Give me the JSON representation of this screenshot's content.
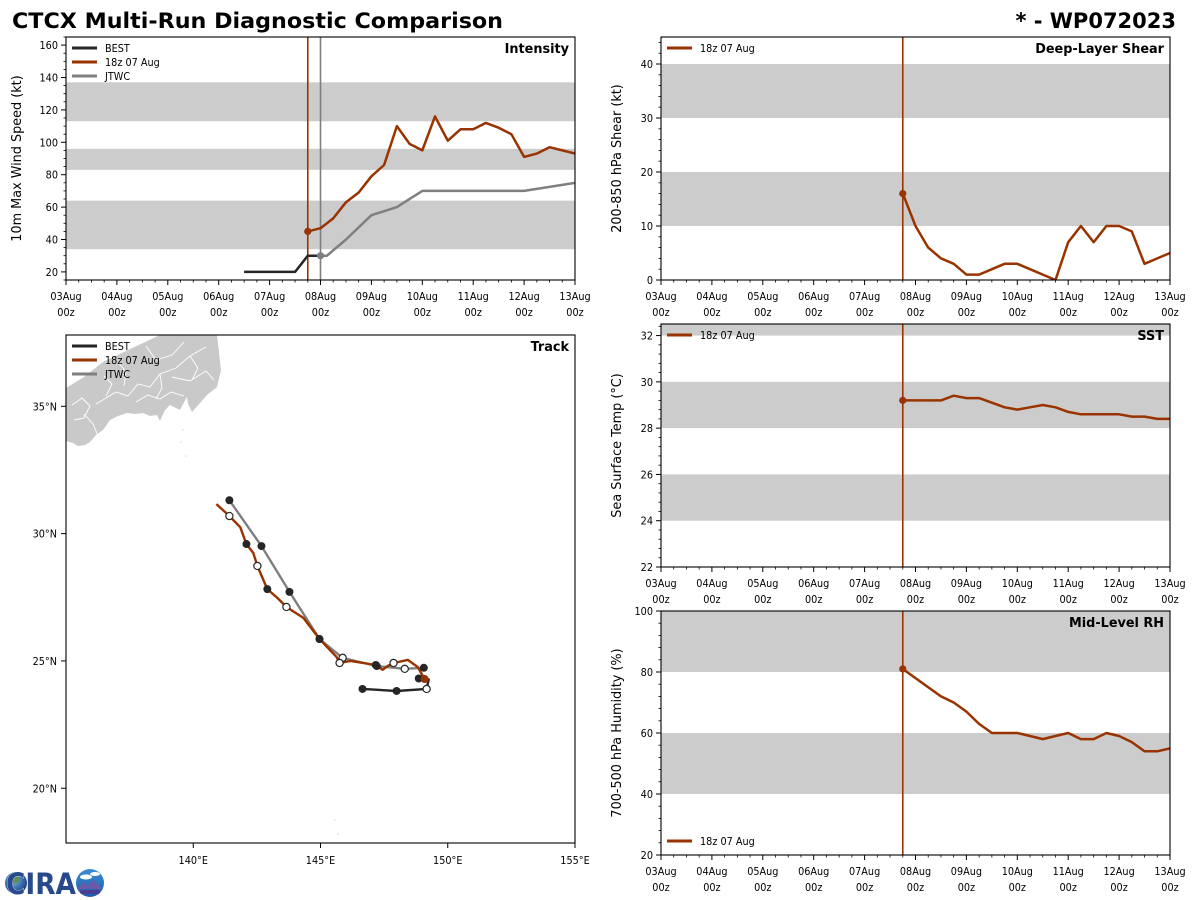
{
  "header": {
    "title": "CTCX Multi-Run Diagnostic Comparison",
    "storm_id": "* - WP072023"
  },
  "branding": {
    "logo_text": "CIRA"
  },
  "colors": {
    "best": "#262626",
    "run": "#993300",
    "jtwc": "#7f7f7f",
    "band": "#cccccc",
    "land": "#c9c9c9"
  },
  "chart_data": [
    {
      "id": "intensity",
      "type": "line",
      "title": "Intensity",
      "xlabel": "",
      "ylabel": "10m Max Wind Speed (kt)",
      "x_unit": "hours since 03Aug 00z",
      "xlim": [
        0,
        240
      ],
      "xticks": [
        0,
        24,
        48,
        72,
        96,
        120,
        144,
        168,
        192,
        216,
        240
      ],
      "xminor_step": 6,
      "xtick_labels": [
        [
          "03Aug",
          "00z"
        ],
        [
          "04Aug",
          "00z"
        ],
        [
          "05Aug",
          "00z"
        ],
        [
          "06Aug",
          "00z"
        ],
        [
          "07Aug",
          "00z"
        ],
        [
          "08Aug",
          "00z"
        ],
        [
          "09Aug",
          "00z"
        ],
        [
          "10Aug",
          "00z"
        ],
        [
          "11Aug",
          "00z"
        ],
        [
          "12Aug",
          "00z"
        ],
        [
          "13Aug",
          "00z"
        ]
      ],
      "ylim": [
        15,
        165
      ],
      "yticks": [
        20,
        40,
        60,
        80,
        100,
        120,
        140,
        160
      ],
      "yminor_step": 5,
      "bands": [
        [
          34,
          64
        ],
        [
          83,
          96
        ],
        [
          113,
          137
        ]
      ],
      "init_lines": [
        {
          "name": "18z 07 Aug",
          "x": 114,
          "color": "#993300"
        },
        {
          "name": "JTWC",
          "x": 120,
          "color": "#7f7f7f"
        }
      ],
      "legend": "top-left",
      "grid": false,
      "series": [
        {
          "name": "BEST",
          "color": "#262626",
          "start_marker": false,
          "points": [
            [
              84,
              20
            ],
            [
              108,
              20
            ],
            [
              114,
              30
            ],
            [
              120,
              30
            ]
          ]
        },
        {
          "name": "JTWC",
          "color": "#7f7f7f",
          "start_marker": true,
          "points": [
            [
              120,
              30
            ],
            [
              123,
              30
            ],
            [
              132,
              40
            ],
            [
              144,
              55
            ],
            [
              156,
              60
            ],
            [
              168,
              70
            ],
            [
              216,
              70
            ],
            [
              240,
              75
            ]
          ]
        },
        {
          "name": "18z 07 Aug",
          "color": "#993300",
          "start_marker": true,
          "points": [
            [
              114,
              45
            ],
            [
              120,
              47
            ],
            [
              126,
              53
            ],
            [
              132,
              63
            ],
            [
              138,
              69
            ],
            [
              144,
              79
            ],
            [
              150,
              86
            ],
            [
              156,
              110
            ],
            [
              162,
              99
            ],
            [
              168,
              95
            ],
            [
              174,
              116
            ],
            [
              180,
              101
            ],
            [
              186,
              108
            ],
            [
              192,
              108
            ],
            [
              198,
              112
            ],
            [
              204,
              109
            ],
            [
              210,
              105
            ],
            [
              216,
              91
            ],
            [
              222,
              93
            ],
            [
              228,
              97
            ],
            [
              234,
              95
            ],
            [
              240,
              93
            ]
          ]
        }
      ]
    },
    {
      "id": "shear",
      "type": "line",
      "title": "Deep-Layer Shear",
      "xlabel": "",
      "ylabel": "200-850 hPa Shear (kt)",
      "x_unit": "hours since 03Aug 00z",
      "xlim": [
        0,
        240
      ],
      "xticks": [
        0,
        24,
        48,
        72,
        96,
        120,
        144,
        168,
        192,
        216,
        240
      ],
      "xminor_step": 6,
      "xtick_labels": [
        [
          "03Aug",
          "00z"
        ],
        [
          "04Aug",
          "00z"
        ],
        [
          "05Aug",
          "00z"
        ],
        [
          "06Aug",
          "00z"
        ],
        [
          "07Aug",
          "00z"
        ],
        [
          "08Aug",
          "00z"
        ],
        [
          "09Aug",
          "00z"
        ],
        [
          "10Aug",
          "00z"
        ],
        [
          "11Aug",
          "00z"
        ],
        [
          "12Aug",
          "00z"
        ],
        [
          "13Aug",
          "00z"
        ]
      ],
      "ylim": [
        0,
        45
      ],
      "yticks": [
        0,
        10,
        20,
        30,
        40
      ],
      "yminor_step": 2,
      "bands": [
        [
          10,
          20
        ],
        [
          30,
          40
        ]
      ],
      "init_lines": [
        {
          "name": "18z 07 Aug",
          "x": 114,
          "color": "#993300"
        }
      ],
      "legend": "top-left",
      "grid": false,
      "series": [
        {
          "name": "18z 07 Aug",
          "color": "#993300",
          "start_marker": true,
          "points": [
            [
              114,
              16
            ],
            [
              120,
              10
            ],
            [
              126,
              6
            ],
            [
              132,
              4
            ],
            [
              138,
              3
            ],
            [
              144,
              1
            ],
            [
              150,
              1
            ],
            [
              156,
              2
            ],
            [
              162,
              3
            ],
            [
              168,
              3
            ],
            [
              174,
              2
            ],
            [
              180,
              1
            ],
            [
              186,
              0
            ],
            [
              192,
              7
            ],
            [
              198,
              10
            ],
            [
              204,
              7
            ],
            [
              210,
              10
            ],
            [
              216,
              10
            ],
            [
              222,
              9
            ],
            [
              228,
              3
            ],
            [
              234,
              4
            ],
            [
              240,
              5
            ]
          ]
        }
      ]
    },
    {
      "id": "sst",
      "type": "line",
      "title": "SST",
      "xlabel": "",
      "ylabel": "Sea Surface Temp (°C)",
      "x_unit": "hours since 03Aug 00z",
      "xlim": [
        0,
        240
      ],
      "xticks": [
        0,
        24,
        48,
        72,
        96,
        120,
        144,
        168,
        192,
        216,
        240
      ],
      "xminor_step": 6,
      "xtick_labels": [
        [
          "03Aug",
          "00z"
        ],
        [
          "04Aug",
          "00z"
        ],
        [
          "05Aug",
          "00z"
        ],
        [
          "06Aug",
          "00z"
        ],
        [
          "07Aug",
          "00z"
        ],
        [
          "08Aug",
          "00z"
        ],
        [
          "09Aug",
          "00z"
        ],
        [
          "10Aug",
          "00z"
        ],
        [
          "11Aug",
          "00z"
        ],
        [
          "12Aug",
          "00z"
        ],
        [
          "13Aug",
          "00z"
        ]
      ],
      "ylim": [
        22,
        32.5
      ],
      "yticks": [
        22,
        24,
        26,
        28,
        30,
        32
      ],
      "yminor_step": 0.4,
      "bands": [
        [
          24,
          26
        ],
        [
          28,
          30
        ],
        [
          32,
          34
        ]
      ],
      "init_lines": [
        {
          "name": "18z 07 Aug",
          "x": 114,
          "color": "#993300"
        }
      ],
      "legend": "top-left",
      "grid": false,
      "series": [
        {
          "name": "18z 07 Aug",
          "color": "#993300",
          "start_marker": true,
          "points": [
            [
              114,
              29.2
            ],
            [
              120,
              29.2
            ],
            [
              126,
              29.2
            ],
            [
              132,
              29.2
            ],
            [
              138,
              29.4
            ],
            [
              144,
              29.3
            ],
            [
              150,
              29.3
            ],
            [
              156,
              29.1
            ],
            [
              162,
              28.9
            ],
            [
              168,
              28.8
            ],
            [
              174,
              28.9
            ],
            [
              180,
              29.0
            ],
            [
              186,
              28.9
            ],
            [
              192,
              28.7
            ],
            [
              198,
              28.6
            ],
            [
              204,
              28.6
            ],
            [
              210,
              28.6
            ],
            [
              216,
              28.6
            ],
            [
              222,
              28.5
            ],
            [
              228,
              28.5
            ],
            [
              234,
              28.4
            ],
            [
              240,
              28.4
            ]
          ]
        }
      ]
    },
    {
      "id": "rh",
      "type": "line",
      "title": "Mid-Level RH",
      "xlabel": "",
      "ylabel": "700-500 hPa Humidity (%)",
      "x_unit": "hours since 03Aug 00z",
      "xlim": [
        0,
        240
      ],
      "xticks": [
        0,
        24,
        48,
        72,
        96,
        120,
        144,
        168,
        192,
        216,
        240
      ],
      "xminor_step": 6,
      "xtick_labels": [
        [
          "03Aug",
          "00z"
        ],
        [
          "04Aug",
          "00z"
        ],
        [
          "05Aug",
          "00z"
        ],
        [
          "06Aug",
          "00z"
        ],
        [
          "07Aug",
          "00z"
        ],
        [
          "08Aug",
          "00z"
        ],
        [
          "09Aug",
          "00z"
        ],
        [
          "10Aug",
          "00z"
        ],
        [
          "11Aug",
          "00z"
        ],
        [
          "12Aug",
          "00z"
        ],
        [
          "13Aug",
          "00z"
        ]
      ],
      "ylim": [
        20,
        100
      ],
      "yticks": [
        20,
        40,
        60,
        80,
        100
      ],
      "yminor_step": 4,
      "bands": [
        [
          40,
          60
        ],
        [
          80,
          100
        ]
      ],
      "init_lines": [
        {
          "name": "18z 07 Aug",
          "x": 114,
          "color": "#993300"
        }
      ],
      "legend": "bottom-left",
      "grid": false,
      "series": [
        {
          "name": "18z 07 Aug",
          "color": "#993300",
          "start_marker": true,
          "points": [
            [
              114,
              81
            ],
            [
              120,
              78
            ],
            [
              126,
              75
            ],
            [
              132,
              72
            ],
            [
              138,
              70
            ],
            [
              144,
              67
            ],
            [
              150,
              63
            ],
            [
              156,
              60
            ],
            [
              162,
              60
            ],
            [
              168,
              60
            ],
            [
              174,
              59
            ],
            [
              180,
              58
            ],
            [
              186,
              59
            ],
            [
              192,
              60
            ],
            [
              198,
              58
            ],
            [
              204,
              58
            ],
            [
              210,
              60
            ],
            [
              216,
              59
            ],
            [
              222,
              57
            ],
            [
              228,
              54
            ],
            [
              234,
              54
            ],
            [
              240,
              55
            ]
          ]
        }
      ]
    },
    {
      "id": "track",
      "type": "line",
      "title": "Track",
      "xlabel": "Longitude",
      "ylabel": "Latitude",
      "xlim": [
        135,
        155
      ],
      "ylim": [
        17.85,
        37.8
      ],
      "xticks": [
        140,
        145,
        150,
        155
      ],
      "xtick_labels": [
        "140°E",
        "145°E",
        "150°E",
        "155°E"
      ],
      "yticks": [
        20,
        25,
        30,
        35
      ],
      "ytick_labels": [
        "20°N",
        "25°N",
        "30°N",
        "35°N"
      ],
      "legend": "top-left",
      "grid": false,
      "series": [
        {
          "name": "BEST",
          "color": "#262626",
          "points": [
            [
              146.65,
              23.9,
              "filled"
            ],
            [
              147.99,
              23.82,
              "filled"
            ],
            [
              149.17,
              23.9,
              "open"
            ],
            [
              149.25,
              24.27,
              "none"
            ],
            [
              148.86,
              24.31,
              "filled"
            ]
          ]
        },
        {
          "name": "JTWC",
          "color": "#7f7f7f",
          "points": [
            [
              149.06,
              24.73,
              "filled"
            ],
            [
              148.31,
              24.69,
              "open"
            ],
            [
              147.21,
              24.8,
              "filled"
            ],
            [
              145.87,
              25.12,
              "open"
            ],
            [
              144.96,
              25.86,
              "filled"
            ],
            [
              143.78,
              27.71,
              "filled"
            ],
            [
              142.68,
              29.51,
              "filled"
            ],
            [
              141.42,
              31.31,
              "filled"
            ]
          ]
        },
        {
          "name": "18z 07 Aug",
          "color": "#993300",
          "points": [
            [
              149.09,
              24.29,
              "start"
            ],
            [
              148.82,
              24.76,
              "none"
            ],
            [
              148.43,
              25.04,
              "none"
            ],
            [
              147.87,
              24.92,
              "open"
            ],
            [
              147.64,
              24.8,
              "none"
            ],
            [
              147.44,
              24.65,
              "none"
            ],
            [
              147.17,
              24.84,
              "filled"
            ],
            [
              146.18,
              25.0,
              "none"
            ],
            [
              145.75,
              24.92,
              "open"
            ],
            [
              145.63,
              25.16,
              "none"
            ],
            [
              144.96,
              25.86,
              "filled"
            ],
            [
              144.33,
              26.69,
              "none"
            ],
            [
              143.66,
              27.12,
              "open"
            ],
            [
              143.31,
              27.47,
              "none"
            ],
            [
              142.91,
              27.82,
              "filled"
            ],
            [
              142.52,
              28.73,
              "open"
            ],
            [
              142.36,
              29.24,
              "none"
            ],
            [
              142.09,
              29.59,
              "filled"
            ],
            [
              141.85,
              30.25,
              "none"
            ],
            [
              141.42,
              30.69,
              "open"
            ],
            [
              140.91,
              31.16,
              "none"
            ]
          ]
        }
      ]
    }
  ]
}
